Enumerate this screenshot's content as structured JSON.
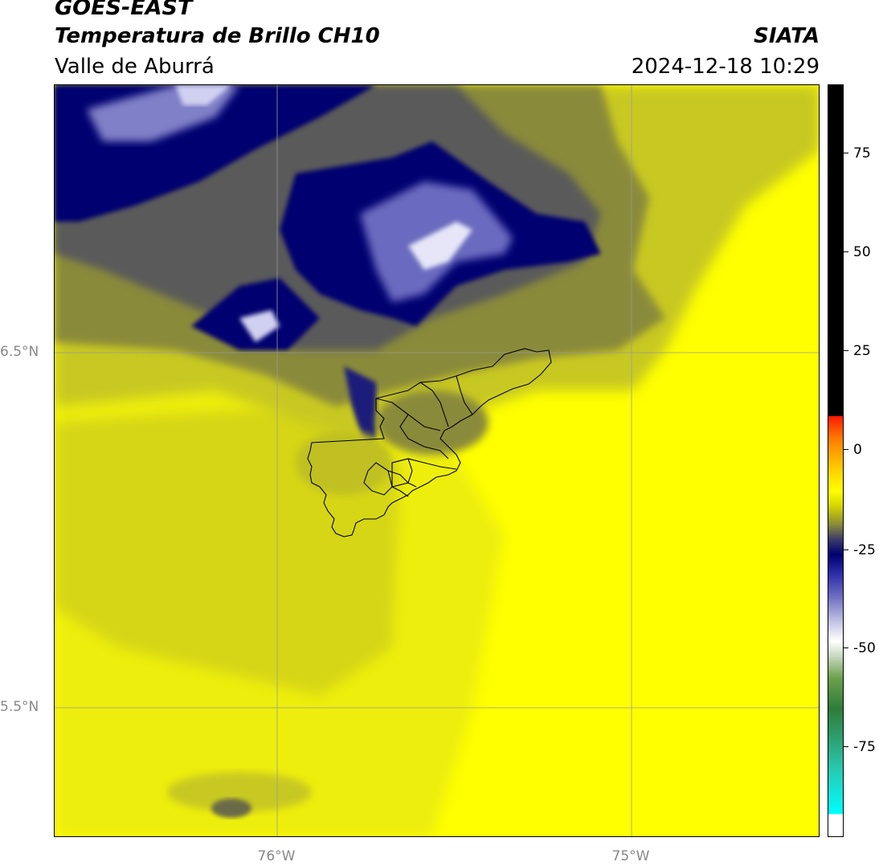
{
  "header": {
    "satellite": "GOES-EAST",
    "product": "Temperatura de Brillo CH10",
    "region": "Valle de Aburrá",
    "organization": "SIATA",
    "datetime": "2024-12-18 10:29"
  },
  "map": {
    "lat_labels": [
      "6.5°N",
      "5.5°N"
    ],
    "lon_labels": [
      "76°W",
      "75°W"
    ]
  },
  "colorbar": {
    "ticks": [
      "75",
      "50",
      "25",
      "0",
      "-25",
      "-50",
      "-75"
    ],
    "colors": {
      "warm_yellow": "#ffff00",
      "olive": "#8a8a3a",
      "navy": "#000070",
      "white": "#ffffff",
      "green": "#2e7d3a",
      "cyan": "#00ffff",
      "red": "#ff1a00",
      "black": "#000000"
    }
  }
}
